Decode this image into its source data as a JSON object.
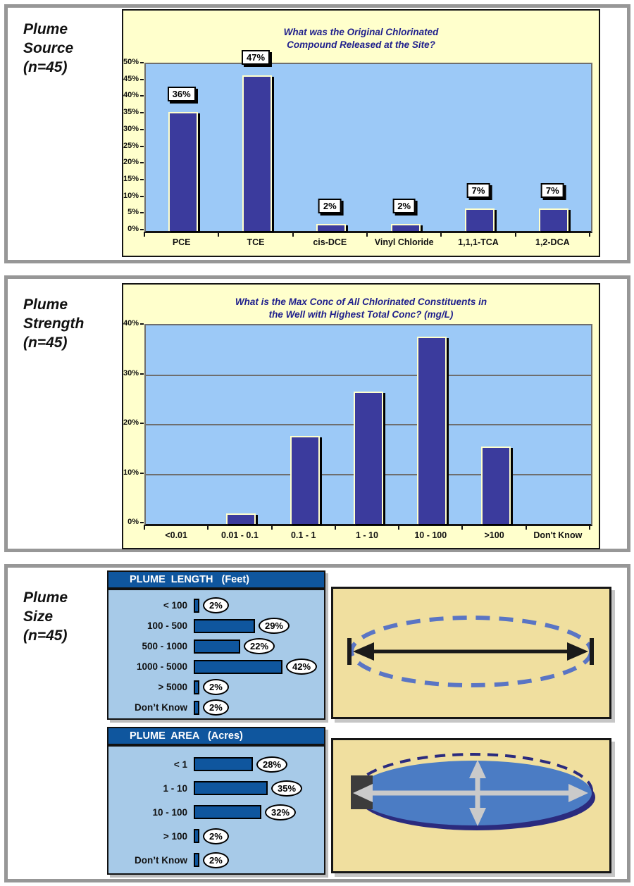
{
  "palette": {
    "page_bg": "#ffffff",
    "section_border": "#979797",
    "chart_bg": "#ffffcc",
    "plot_bg": "#9cc9f7",
    "bar_fill": "#3b3b9d",
    "chart_title_color": "#1f1f8c",
    "panel_bg": "#a7cae8",
    "panel_header_bg": "#0f569e",
    "hbar_fill": "#0f569e",
    "illustration_bg": "#f0df9f",
    "dashed_ellipse": "#5a75c4",
    "plume_fill": "#4b7cc4",
    "plume_shadow": "#2b2b7e",
    "measure_arrow_gray": "#cacaca",
    "source_square": "#3c3c3c"
  },
  "sections": {
    "source": {
      "label": "Plume\nSource\n(n=45)"
    },
    "strength": {
      "label": "Plume\nStrength\n(n=45)"
    },
    "size": {
      "label": "Plume\nSize\n(n=45)"
    }
  },
  "chart_data": [
    {
      "id": "plume-source",
      "type": "bar",
      "title": "What was the Original Chlorinated\nCompound Released at the Site?",
      "categories": [
        "PCE",
        "TCE",
        "cis-DCE",
        "Vinyl Chloride",
        "1,1,1-TCA",
        "1,2-DCA"
      ],
      "values": [
        35.6,
        46.7,
        2.2,
        2.2,
        6.7,
        6.7
      ],
      "bar_labels": [
        "36%",
        "47%",
        "2%",
        "2%",
        "7%",
        "7%"
      ],
      "ylim": [
        0,
        50
      ],
      "ytick_step": 5,
      "ytick_suffix": "%",
      "gridlines": false,
      "legend": "none"
    },
    {
      "id": "plume-strength",
      "type": "bar",
      "title": "What is the Max Conc of All Chlorinated Constituents in\nthe Well with Highest Total Conc? (mg/L)",
      "categories": [
        "<0.01",
        "0.01 - 0.1",
        "0.1 - 1",
        "1 - 10",
        "10 - 100",
        ">100",
        "Don't Know"
      ],
      "values": [
        0,
        2.2,
        17.8,
        26.7,
        37.8,
        15.6,
        0
      ],
      "bar_labels": null,
      "ylim": [
        0,
        40
      ],
      "ytick_step": 10,
      "ytick_suffix": "%",
      "gridlines": true,
      "legend": "none"
    },
    {
      "id": "plume-length",
      "type": "hbar",
      "title": "PLUME  LENGTH   (Feet)",
      "categories": [
        "< 100",
        "100 - 500",
        "500 - 1000",
        "1000 - 5000",
        "> 5000",
        "Don’t Know"
      ],
      "values": [
        2,
        29,
        22,
        42,
        2,
        2
      ],
      "bar_labels": [
        "2%",
        "29%",
        "22%",
        "42%",
        "2%",
        "2%"
      ],
      "xlabel": "",
      "ylabel": ""
    },
    {
      "id": "plume-area",
      "type": "hbar",
      "title": "PLUME  AREA   (Acres)",
      "categories": [
        "< 1",
        "1 - 10",
        "10 - 100",
        "> 100",
        "Don’t Know"
      ],
      "values": [
        28,
        35,
        32,
        2,
        2
      ],
      "bar_labels": [
        "28%",
        "35%",
        "32%",
        "2%",
        "2%"
      ],
      "xlabel": "",
      "ylabel": ""
    }
  ]
}
